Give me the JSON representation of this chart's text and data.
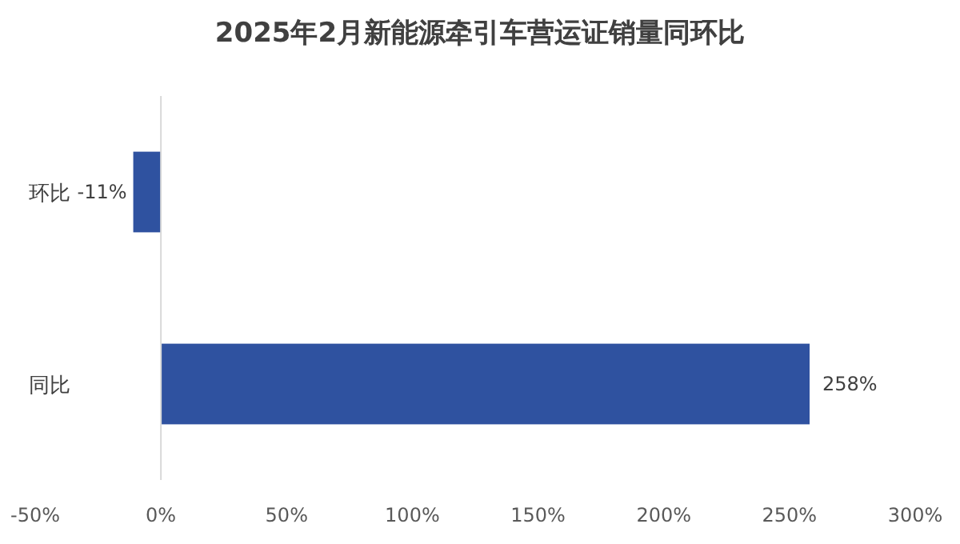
{
  "chart_data": {
    "type": "bar",
    "orientation": "horizontal",
    "title": "2025年2月新能源牵引车营运证销量同环比",
    "categories": [
      "环比",
      "同比"
    ],
    "values": [
      -11,
      258
    ],
    "value_labels": [
      "-11%",
      "258%"
    ],
    "color": "#2f52a0",
    "xlim": [
      -50,
      300
    ],
    "xticks": [
      {
        "value": -50,
        "label": "-50%"
      },
      {
        "value": 0,
        "label": "0%"
      },
      {
        "value": 50,
        "label": "50%"
      },
      {
        "value": 100,
        "label": "100%"
      },
      {
        "value": 150,
        "label": "150%"
      },
      {
        "value": 200,
        "label": "200%"
      },
      {
        "value": 250,
        "label": "250%"
      },
      {
        "value": 300,
        "label": "300%"
      }
    ]
  }
}
